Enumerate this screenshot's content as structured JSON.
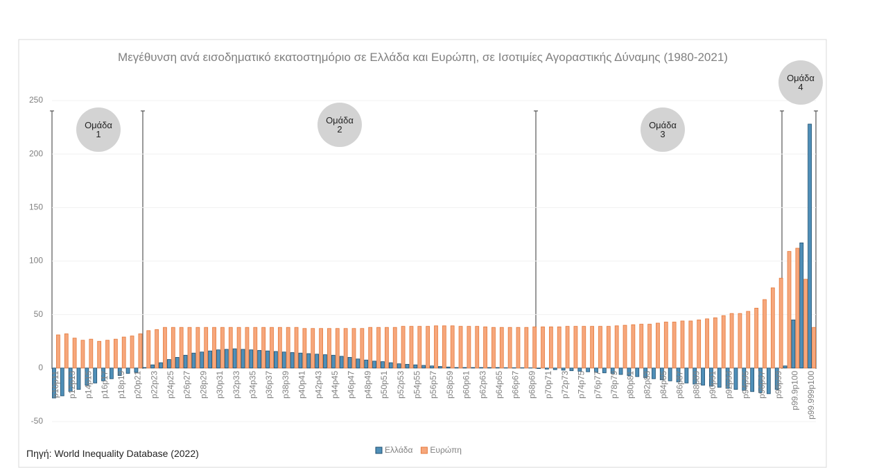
{
  "chart_data": {
    "type": "bar",
    "title": "Μεγέθυνση ανά εισοδηματικό εκατοστημόριο σε Ελλάδα και Ευρώπη, σε Ισοτιμίες Αγοραστικής Δύναμης (1980-2021)",
    "source": "Πηγή: World Inequality Database (2022)",
    "annotations": [
      "Ομάδα 1",
      "Ομάδα 2",
      "Ομάδα 3",
      "Ομάδα 4"
    ],
    "categories": [
      "p10p11",
      null,
      "p12p13",
      null,
      "p14p15",
      null,
      "p16p17",
      null,
      "p18p19",
      null,
      "p20p21",
      null,
      "p22p23",
      null,
      "p24p25",
      null,
      "p26p27",
      null,
      "p28p29",
      null,
      "p30p31",
      null,
      "p32p33",
      null,
      "p34p35",
      null,
      "p36p37",
      null,
      "p38p39",
      null,
      "p40p41",
      null,
      "p42p43",
      null,
      "p44p45",
      null,
      "p46p47",
      null,
      "p48p49",
      null,
      "p50p51",
      null,
      "p52p53",
      null,
      "p54p55",
      null,
      "p56p57",
      null,
      "p58p59",
      null,
      "p60p61",
      null,
      "p62p63",
      null,
      "p64p65",
      null,
      "p66p67",
      null,
      "p68p69",
      null,
      "p70p71",
      null,
      "p72p73",
      null,
      "p74p75",
      null,
      "p76p77",
      null,
      "p78p79",
      null,
      "p80p81",
      null,
      "p82p83",
      null,
      "p84p85",
      null,
      "p86p87",
      null,
      "p88p89",
      null,
      "p90p91",
      null,
      "p92p93",
      null,
      "p94p95",
      null,
      "p96p97",
      null,
      "p98p99",
      null,
      "p99.9p100",
      null,
      "p99.999p100"
    ],
    "series": [
      {
        "name": "Ελλάδα",
        "color": "#4f8fb8",
        "stroke": "#1f4e6e",
        "values": [
          -28,
          -26,
          -22,
          -20,
          -16,
          -14,
          -12,
          -10,
          -7,
          -5,
          -4,
          0.5,
          3,
          5,
          8,
          10,
          12,
          14,
          15,
          16,
          17,
          17.5,
          18,
          17.5,
          17,
          16.5,
          16,
          15.5,
          15,
          14.5,
          14,
          13.5,
          13,
          12.5,
          12,
          11,
          10,
          8.5,
          7.5,
          6.5,
          6,
          5,
          4,
          3.5,
          3,
          2.5,
          2,
          1.5,
          1,
          0.5,
          0.5,
          0.5,
          0.5,
          0.5,
          0.5,
          0.3,
          0.3,
          0.3,
          0.2,
          -0.5,
          -1,
          -1.5,
          -2,
          -2.5,
          -3,
          -3.5,
          -4,
          -4.5,
          -5,
          -6,
          -7,
          -8,
          -9,
          -10,
          -11,
          -12,
          -13,
          -14,
          -15,
          -16,
          -17,
          -18,
          -19,
          -20,
          -21,
          -22,
          -23,
          -24,
          -20,
          2,
          45,
          117,
          228
        ]
      },
      {
        "name": "Ευρώπη",
        "color": "#f6a77c",
        "stroke": "#e57a3c",
        "values": [
          31,
          32,
          28,
          26,
          27,
          25,
          26,
          27,
          29,
          30,
          32,
          35,
          36,
          38,
          38,
          38,
          38,
          38,
          38,
          38,
          38,
          38,
          38,
          38,
          38,
          38,
          38,
          38,
          38,
          38,
          37,
          37,
          37,
          37,
          37,
          37,
          37,
          37,
          38,
          38,
          38,
          38,
          39,
          39,
          39,
          39,
          39.5,
          39.5,
          39.5,
          39,
          39,
          39,
          38.5,
          38,
          38,
          38,
          38,
          38,
          38.5,
          38.5,
          38.5,
          38.5,
          39,
          39,
          39,
          39,
          39,
          39,
          39.5,
          40,
          40.5,
          41,
          41,
          42,
          43,
          43,
          44,
          44,
          45,
          46,
          47,
          49,
          51,
          51,
          53,
          56,
          64,
          75,
          84,
          109,
          112,
          83,
          38
        ]
      }
    ],
    "ylim": [
      -50,
      250
    ],
    "yticks": [
      -50,
      0,
      50,
      100,
      150,
      200,
      250
    ],
    "grid": true
  }
}
